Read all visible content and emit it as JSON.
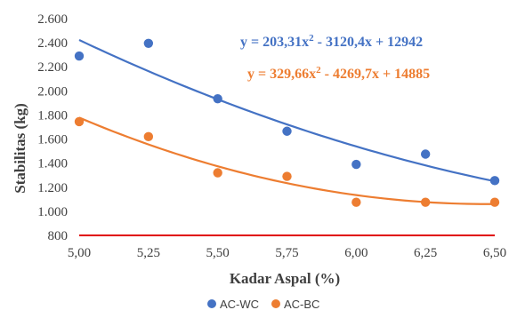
{
  "chart_data": {
    "type": "scatter",
    "title": "",
    "xlabel": "Kadar Aspal (%)",
    "ylabel": "Stabilitas (kg)",
    "xlim": [
      5.0,
      6.5
    ],
    "ylim": [
      800,
      2600
    ],
    "x_ticks": [
      "5,00",
      "5,25",
      "5,50",
      "5,75",
      "6,00",
      "6,25",
      "6,50"
    ],
    "x_tick_values": [
      5.0,
      5.25,
      5.5,
      5.75,
      6.0,
      6.25,
      6.5
    ],
    "y_ticks": [
      "800",
      "1.000",
      "1.200",
      "1.400",
      "1.600",
      "1.800",
      "2.000",
      "2.200",
      "2.400",
      "2.600"
    ],
    "y_tick_values": [
      800,
      1000,
      1200,
      1400,
      1600,
      1800,
      2000,
      2200,
      2400,
      2600
    ],
    "grid": false,
    "legend_position": "bottom",
    "series": [
      {
        "name": "AC-WC",
        "color": "#4472c4",
        "x": [
          5.0,
          5.25,
          5.5,
          5.75,
          6.0,
          6.25,
          6.5
        ],
        "y": [
          2290,
          2395,
          1935,
          1665,
          1390,
          1475,
          1255
        ],
        "trendline": {
          "type": "polynomial",
          "coefficients": [
            203.31,
            -3120.4,
            12942
          ],
          "label": "y = 203,31x² - 3120,4x + 12942"
        }
      },
      {
        "name": "AC-BC",
        "color": "#ed7d31",
        "x": [
          5.0,
          5.25,
          5.5,
          5.75,
          6.0,
          6.25,
          6.5
        ],
        "y": [
          1745,
          1620,
          1320,
          1290,
          1075,
          1075,
          1075
        ],
        "trendline": {
          "type": "polynomial",
          "coefficients": [
            329.66,
            -4269.7,
            14885
          ],
          "label": "y = 329,66x² - 4269,7x + 14885"
        }
      }
    ],
    "reference_line": {
      "y": 800,
      "color": "#e00000"
    }
  }
}
